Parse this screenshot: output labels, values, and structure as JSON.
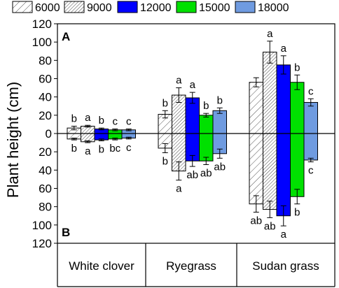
{
  "chart_data": {
    "type": "bar",
    "orientation": "mirrored-vertical",
    "ylabel": "Plant height (cm)",
    "panel_labels": {
      "top": "A",
      "bottom": "B"
    },
    "ylim": [
      -120,
      120
    ],
    "yticks": [
      120,
      100,
      80,
      60,
      40,
      20,
      0,
      20,
      40,
      60,
      80,
      100,
      120
    ],
    "categories": [
      "White clover",
      "Ryegrass",
      "Sudan grass"
    ],
    "legend": {
      "placement": "top"
    },
    "series": [
      {
        "name": "6000",
        "fill": "#ffffff",
        "pattern": "hatch-sparse",
        "top": [
          6,
          21,
          56
        ],
        "top_err": [
          2,
          4,
          5
        ],
        "top_letters": [
          "b",
          "b",
          ""
        ],
        "bottom": [
          6,
          16,
          77
        ],
        "bottom_err": [
          1,
          5,
          9
        ],
        "bottom_letters": [
          "b",
          "b",
          "ab"
        ]
      },
      {
        "name": "9000",
        "fill": "#ffffff",
        "pattern": "hatch-dense",
        "top": [
          8,
          42,
          89
        ],
        "top_err": [
          1,
          8,
          12
        ],
        "top_letters": [
          "a",
          "a",
          "a"
        ],
        "bottom": [
          9,
          41,
          83
        ],
        "bottom_err": [
          1,
          10,
          9
        ],
        "bottom_letters": [
          "a",
          "a",
          "ab"
        ]
      },
      {
        "name": "12000",
        "fill": "#0000ff",
        "pattern": "solid",
        "top": [
          5,
          39,
          75
        ],
        "top_err": [
          1,
          6,
          10
        ],
        "top_letters": [
          "b",
          "a",
          "a"
        ],
        "bottom": [
          7,
          30,
          90
        ],
        "bottom_err": [
          1,
          6,
          11
        ],
        "bottom_letters": [
          "b",
          "ab",
          "a"
        ]
      },
      {
        "name": "15000",
        "fill": "#00e000",
        "pattern": "solid",
        "top": [
          4,
          20,
          56
        ],
        "top_err": [
          1,
          2,
          8
        ],
        "top_letters": [
          "c",
          "b",
          "b"
        ],
        "bottom": [
          6,
          30,
          69
        ],
        "bottom_err": [
          1,
          4,
          8
        ],
        "bottom_letters": [
          "bc",
          "ab",
          "b"
        ]
      },
      {
        "name": "18000",
        "fill": "#6f9be0",
        "pattern": "solid",
        "top": [
          4,
          25,
          34
        ],
        "top_err": [
          1,
          3,
          4
        ],
        "top_letters": [
          "c",
          "b",
          "c"
        ],
        "bottom": [
          5,
          22,
          29
        ],
        "bottom_err": [
          1,
          5,
          2
        ],
        "bottom_letters": [
          "c",
          "ab",
          "c"
        ]
      }
    ]
  }
}
